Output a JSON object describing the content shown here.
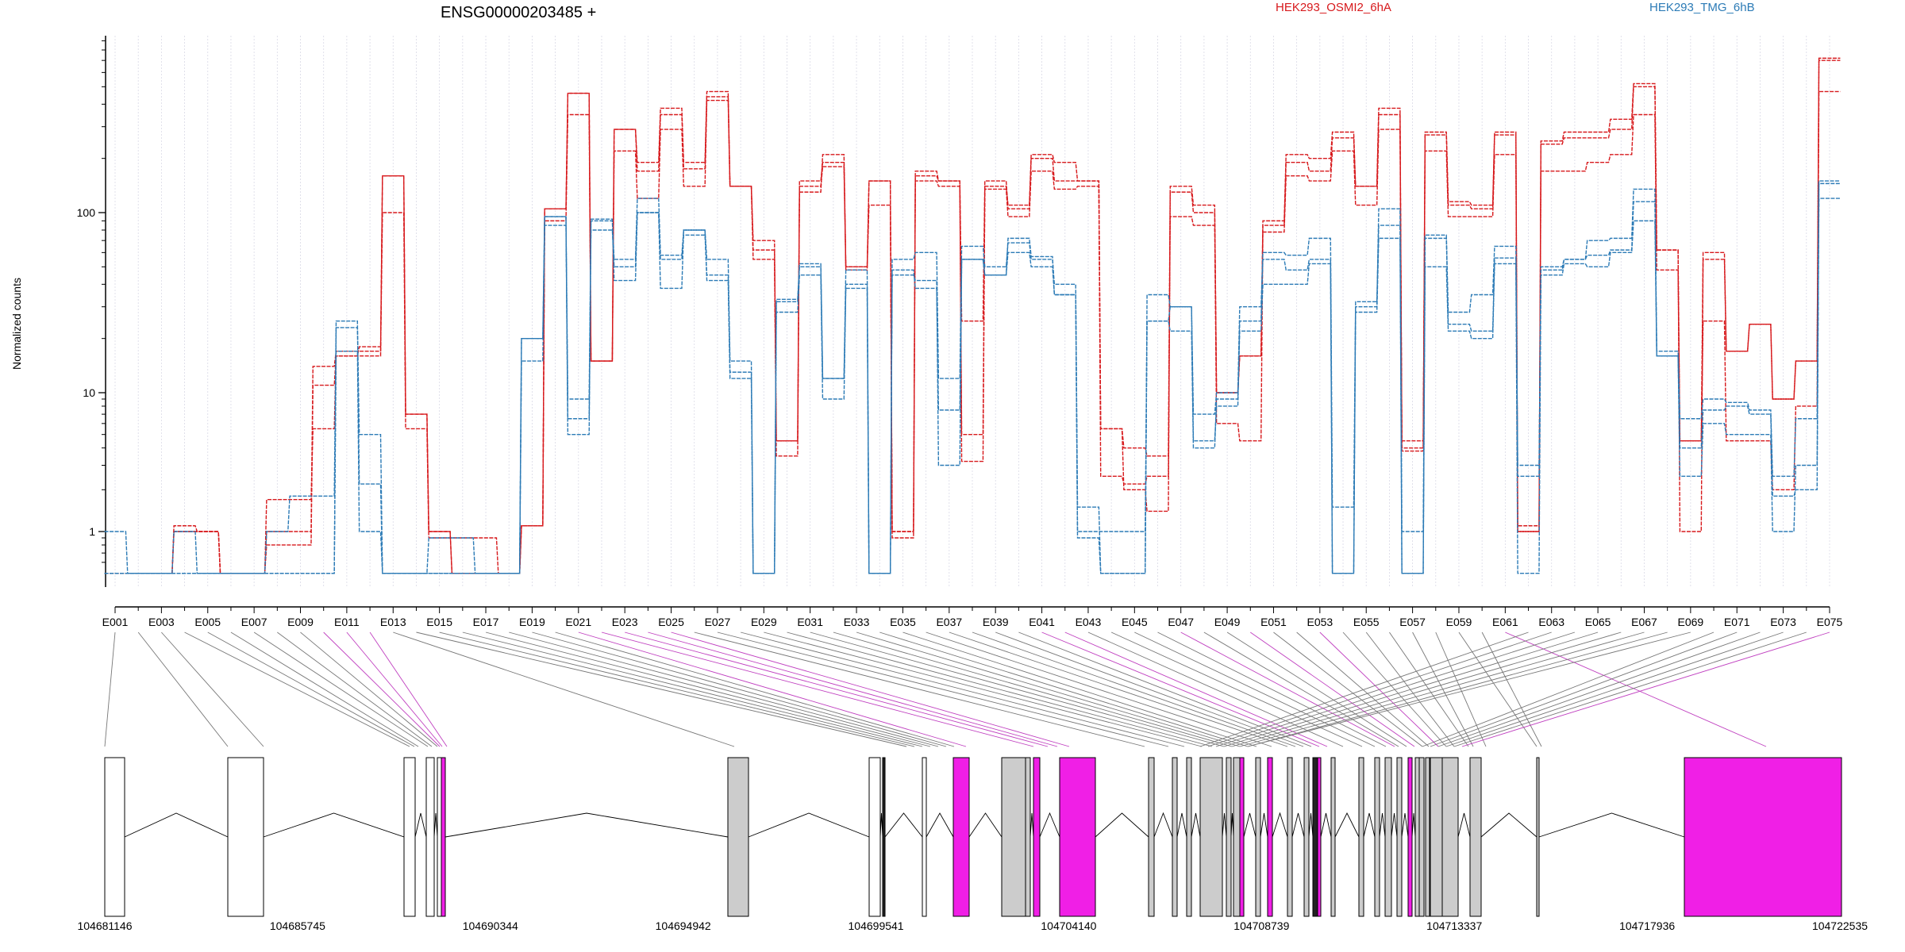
{
  "chart_data": {
    "type": "line",
    "title": "ENSG00000203485 +",
    "ylabel": "Normalized counts",
    "yscale": "log",
    "ylim": [
      0.5,
      800
    ],
    "yticks": [
      1,
      10,
      100
    ],
    "ytick_labels": [
      "1",
      "10",
      "100"
    ],
    "grid": "vertical dotted lines at each exon",
    "legend": [
      {
        "name": "HEK293_OSMI2_6hA",
        "color": "#d7191c"
      },
      {
        "name": "HEK293_TMG_6hB",
        "color": "#2c7bb6"
      }
    ],
    "exons": [
      "E001",
      "E002",
      "E003",
      "E004",
      "E005",
      "E006",
      "E007",
      "E008",
      "E009",
      "E010",
      "E011",
      "E012",
      "E013",
      "E014",
      "E015",
      "E016",
      "E017",
      "E018",
      "E019",
      "E020",
      "E021",
      "E022",
      "E023",
      "E024",
      "E025",
      "E026",
      "E027",
      "E028",
      "E029",
      "E030",
      "E031",
      "E032",
      "E033",
      "E034",
      "E035",
      "E036",
      "E037",
      "E038",
      "E039",
      "E040",
      "E041",
      "E042",
      "E043",
      "E044",
      "E045",
      "E046",
      "E047",
      "E048",
      "E049",
      "E050",
      "E051",
      "E052",
      "E053",
      "E054",
      "E055",
      "E056",
      "E057",
      "E058",
      "E059",
      "E060",
      "E061",
      "E062",
      "E063",
      "E064",
      "E065",
      "E066",
      "E067",
      "E068",
      "E069",
      "E070",
      "E071",
      "E072",
      "E073",
      "E074",
      "E075"
    ],
    "exon_tick_labels": [
      "E001",
      "E003",
      "E005",
      "E007",
      "E009",
      "E011",
      "E013",
      "E015",
      "E017",
      "E019",
      "E021",
      "E023",
      "E025",
      "E027",
      "E029",
      "E031",
      "E033",
      "E035",
      "E037",
      "E039",
      "E041",
      "E043",
      "E045",
      "E047",
      "E049",
      "E051",
      "E053",
      "E055",
      "E057",
      "E059",
      "E061",
      "E063",
      "E065",
      "E067",
      "E069",
      "E071",
      "E073",
      "E075"
    ],
    "series": [
      {
        "name": "HEK293_OSMI2_6hA",
        "group": 0,
        "values": [
          0.5,
          0.5,
          0.5,
          1.1,
          1.0,
          0.5,
          0.5,
          1.7,
          1.7,
          5.5,
          16,
          16,
          160,
          7.0,
          1.0,
          0.5,
          0.5,
          0.5,
          1.1,
          105,
          460,
          15,
          290,
          170,
          350,
          175,
          440,
          140,
          70,
          4.5,
          150,
          190,
          48,
          150,
          1.0,
          170,
          150,
          25,
          150,
          105,
          200,
          150,
          150,
          5.5,
          2.0,
          1.4,
          130,
          100,
          10,
          16,
          85,
          190,
          170,
          260,
          140,
          350,
          3.8,
          270,
          110,
          105,
          270,
          1.1,
          240,
          260,
          260,
          290,
          500,
          62,
          1.0,
          55,
          17,
          24,
          9,
          15,
          700
        ]
      },
      {
        "name": "HEK293_OSMI2_6hA",
        "group": 0,
        "values": [
          0.5,
          0.5,
          0.5,
          1.0,
          1.0,
          0.5,
          0.5,
          1.0,
          1.0,
          14,
          17,
          17,
          100,
          5.5,
          0.9,
          0.9,
          0.9,
          0.5,
          1.1,
          90,
          350,
          15,
          220,
          120,
          290,
          140,
          420,
          140,
          62,
          3.5,
          140,
          180,
          50,
          110,
          1.0,
          150,
          140,
          5.0,
          135,
          95,
          170,
          135,
          140,
          2.5,
          2.2,
          2.5,
          95,
          85,
          6.0,
          4.5,
          78,
          160,
          150,
          220,
          110,
          290,
          4.0,
          220,
          95,
          95,
          210,
          1.0,
          170,
          170,
          190,
          210,
          350,
          48,
          4.5,
          25,
          4.5,
          4.5,
          2.0,
          8.0,
          470
        ]
      },
      {
        "name": "HEK293_OSMI2_6hA",
        "group": 0,
        "values": [
          0.5,
          0.5,
          0.5,
          1.0,
          1.0,
          0.5,
          0.5,
          0.8,
          0.8,
          11,
          16,
          18,
          160,
          7.0,
          1.0,
          0.5,
          0.5,
          0.5,
          1.1,
          105,
          460,
          15,
          290,
          190,
          380,
          190,
          470,
          140,
          55,
          4.5,
          130,
          210,
          50,
          150,
          0.9,
          160,
          150,
          3.2,
          140,
          110,
          210,
          190,
          150,
          5.5,
          4.0,
          3.5,
          140,
          110,
          10,
          16,
          90,
          210,
          200,
          280,
          140,
          380,
          4.5,
          280,
          115,
          110,
          280,
          1.0,
          250,
          280,
          280,
          330,
          520,
          62,
          4.5,
          60,
          17,
          24,
          9,
          15,
          720
        ]
      },
      {
        "name": "HEK293_TMG_6hB",
        "group": 1,
        "values": [
          1.0,
          0.5,
          0.5,
          1.0,
          0.5,
          0.5,
          0.5,
          1.0,
          1.8,
          1.8,
          25,
          2.2,
          0.5,
          0.5,
          0.9,
          0.9,
          0.5,
          0.5,
          20,
          95,
          9.0,
          90,
          55,
          120,
          58,
          80,
          55,
          15,
          0.5,
          32,
          50,
          12,
          48,
          0.5,
          55,
          60,
          12,
          65,
          50,
          68,
          55,
          40,
          1.5,
          0.5,
          0.5,
          35,
          30,
          7.0,
          10,
          30,
          60,
          58,
          72,
          1.5,
          30,
          105,
          1.0,
          75,
          28,
          35,
          65,
          3.0,
          50,
          55,
          70,
          72,
          135,
          17,
          6.5,
          9.0,
          8.5,
          7.5,
          2.5,
          6.5,
          150
        ]
      },
      {
        "name": "HEK293_TMG_6hB",
        "group": 1,
        "values": [
          0.5,
          0.5,
          0.5,
          0.5,
          0.5,
          0.5,
          0.5,
          0.5,
          0.5,
          0.5,
          23,
          5.0,
          0.5,
          0.5,
          0.5,
          0.5,
          0.5,
          0.5,
          15,
          85,
          6.5,
          80,
          50,
          100,
          55,
          75,
          45,
          12,
          0.5,
          28,
          45,
          9.0,
          40,
          0.5,
          45,
          42,
          3.0,
          55,
          45,
          60,
          50,
          35,
          0.9,
          0.5,
          0.5,
          25,
          22,
          4.0,
          9.0,
          22,
          40,
          40,
          52,
          0.5,
          28,
          72,
          0.5,
          50,
          22,
          20,
          52,
          0.5,
          45,
          52,
          50,
          60,
          90,
          16,
          2.5,
          6.0,
          5.0,
          5.0,
          1.0,
          3.0,
          120
        ]
      },
      {
        "name": "HEK293_TMG_6hB",
        "group": 1,
        "values": [
          0.5,
          0.5,
          0.5,
          0.5,
          0.5,
          0.5,
          0.5,
          0.5,
          0.5,
          0.5,
          17,
          1.0,
          0.5,
          0.5,
          0.5,
          0.5,
          0.5,
          0.5,
          20,
          95,
          5.0,
          92,
          42,
          100,
          38,
          80,
          42,
          13,
          0.5,
          33,
          52,
          12,
          38,
          0.5,
          48,
          38,
          7.5,
          55,
          45,
          72,
          57,
          35,
          1.0,
          1.0,
          1.0,
          25,
          30,
          4.5,
          8.0,
          25,
          55,
          48,
          55,
          0.5,
          32,
          85,
          0.5,
          72,
          24,
          22,
          56,
          2.5,
          48,
          55,
          58,
          62,
          115,
          16,
          4.0,
          7.5,
          8.0,
          7.0,
          1.8,
          2.0,
          145
        ]
      }
    ],
    "gene_model": {
      "coordinate_labels": [
        "104681146",
        "104685745",
        "104690344",
        "104694942",
        "104699541",
        "104704140",
        "104708739",
        "104713337",
        "104717936",
        "104722535"
      ]
    }
  }
}
